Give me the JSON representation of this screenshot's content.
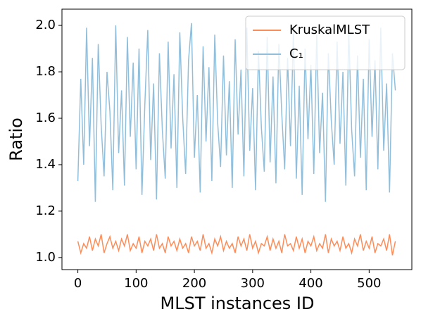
{
  "chart_data": {
    "type": "line",
    "xlabel": "MLST instances ID",
    "ylabel": "Ratio",
    "x": [
      0,
      5,
      10,
      15,
      20,
      25,
      30,
      35,
      40,
      45,
      50,
      55,
      60,
      65,
      70,
      75,
      80,
      85,
      90,
      95,
      100,
      105,
      110,
      115,
      120,
      125,
      130,
      135,
      140,
      145,
      150,
      155,
      160,
      165,
      170,
      175,
      180,
      185,
      190,
      195,
      200,
      205,
      210,
      215,
      220,
      225,
      230,
      235,
      240,
      245,
      250,
      255,
      260,
      265,
      270,
      275,
      280,
      285,
      290,
      295,
      300,
      305,
      310,
      315,
      320,
      325,
      330,
      335,
      340,
      345,
      350,
      355,
      360,
      365,
      370,
      375,
      380,
      385,
      390,
      395,
      400,
      405,
      410,
      415,
      420,
      425,
      430,
      435,
      440,
      445,
      450,
      455,
      460,
      465,
      470,
      475,
      480,
      485,
      490,
      495,
      500,
      505,
      510,
      515,
      520,
      525,
      530,
      535,
      540,
      545
    ],
    "series": [
      {
        "name": "KruskalMLST",
        "color": "#fc8d59",
        "values": [
          1.07,
          1.02,
          1.06,
          1.04,
          1.09,
          1.03,
          1.08,
          1.05,
          1.1,
          1.02,
          1.06,
          1.09,
          1.04,
          1.07,
          1.03,
          1.08,
          1.05,
          1.1,
          1.03,
          1.06,
          1.04,
          1.09,
          1.02,
          1.07,
          1.05,
          1.08,
          1.03,
          1.1,
          1.04,
          1.06,
          1.02,
          1.09,
          1.05,
          1.07,
          1.03,
          1.08,
          1.04,
          1.06,
          1.02,
          1.09,
          1.05,
          1.07,
          1.03,
          1.1,
          1.04,
          1.06,
          1.02,
          1.08,
          1.05,
          1.09,
          1.03,
          1.07,
          1.04,
          1.06,
          1.02,
          1.09,
          1.05,
          1.08,
          1.03,
          1.1,
          1.04,
          1.07,
          1.02,
          1.06,
          1.05,
          1.09,
          1.03,
          1.08,
          1.04,
          1.07,
          1.02,
          1.1,
          1.05,
          1.06,
          1.03,
          1.09,
          1.04,
          1.08,
          1.02,
          1.07,
          1.05,
          1.09,
          1.03,
          1.06,
          1.04,
          1.1,
          1.02,
          1.08,
          1.05,
          1.07,
          1.03,
          1.09,
          1.04,
          1.06,
          1.02,
          1.08,
          1.05,
          1.1,
          1.03,
          1.07,
          1.04,
          1.09,
          1.02,
          1.06,
          1.05,
          1.08,
          1.03,
          1.1,
          1.01,
          1.07
        ]
      },
      {
        "name": "C₁",
        "color": "#91bfdb",
        "values": [
          1.33,
          1.77,
          1.4,
          1.99,
          1.48,
          1.86,
          1.24,
          1.92,
          1.57,
          1.35,
          1.8,
          1.63,
          1.29,
          2.0,
          1.45,
          1.72,
          1.31,
          1.95,
          1.52,
          1.84,
          1.38,
          1.9,
          1.27,
          1.66,
          1.98,
          1.42,
          1.75,
          1.25,
          1.88,
          1.55,
          1.34,
          1.93,
          1.47,
          1.79,
          1.3,
          1.97,
          1.6,
          1.36,
          1.85,
          2.01,
          1.43,
          1.7,
          1.28,
          1.91,
          1.5,
          1.82,
          1.33,
          1.96,
          1.58,
          1.39,
          1.87,
          1.44,
          1.76,
          1.3,
          1.94,
          1.53,
          1.81,
          1.35,
          1.99,
          1.46,
          1.73,
          1.29,
          1.89,
          1.56,
          1.37,
          1.95,
          1.41,
          1.78,
          1.32,
          1.92,
          1.62,
          1.38,
          1.86,
          1.48,
          1.97,
          1.34,
          1.74,
          1.27,
          1.9,
          1.51,
          1.83,
          1.36,
          1.96,
          1.45,
          1.71,
          1.24,
          1.88,
          1.59,
          1.4,
          1.93,
          1.49,
          1.8,
          1.31,
          1.98,
          1.55,
          1.35,
          1.87,
          1.43,
          1.77,
          1.29,
          1.94,
          1.52,
          1.85,
          1.38,
          1.99,
          1.46,
          1.75,
          1.28,
          1.88,
          1.72
        ]
      }
    ],
    "xlim": [
      -27.3,
      573.3
    ],
    "xticks": [
      0,
      100,
      200,
      300,
      400,
      500
    ],
    "ylim": [
      0.948,
      2.07
    ],
    "yticks": [
      {
        "value": 1,
        "label": "1.0"
      },
      1.2,
      1.4,
      1.6,
      1.8,
      {
        "value": 2,
        "label": "2.0"
      }
    ],
    "legend": "upper right"
  }
}
